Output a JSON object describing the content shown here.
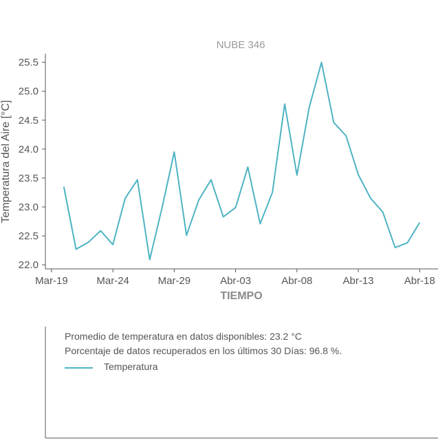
{
  "chart_data": {
    "type": "line",
    "title": "NUBE 346",
    "xlabel": "TIEMPO",
    "ylabel": "Temperatura del Aire [°C]",
    "x_tick_labels": [
      "Mar-19",
      "Mar-24",
      "Mar-29",
      "Abr-03",
      "Abr-08",
      "Abr-13",
      "Abr-18"
    ],
    "x_start_date": "Mar-19",
    "x_days_range": [
      -0.5,
      31.5
    ],
    "y_ticks": [
      22.0,
      22.5,
      23.0,
      23.5,
      24.0,
      24.5,
      25.0,
      25.5
    ],
    "ylim": [
      21.93,
      25.65
    ],
    "grid": false,
    "legend_position": "bottom-left",
    "series": [
      {
        "name": "Temperatura",
        "color": "#4db3c2",
        "x": [
          "Mar-20",
          "Mar-21",
          "Mar-22",
          "Mar-23",
          "Mar-24",
          "Mar-25",
          "Mar-26",
          "Mar-27",
          "Mar-28",
          "Mar-29",
          "Mar-30",
          "Mar-31",
          "Abr-01",
          "Abr-02",
          "Abr-03",
          "Abr-04",
          "Abr-05",
          "Abr-06",
          "Abr-07",
          "Abr-08",
          "Abr-09",
          "Abr-10",
          "Abr-11",
          "Abr-12",
          "Abr-13",
          "Abr-14",
          "Abr-15",
          "Abr-16",
          "Abr-17",
          "Abr-18"
        ],
        "x_days": [
          1,
          2,
          3,
          4,
          5,
          6,
          7,
          8,
          9,
          10,
          11,
          12,
          13,
          14,
          15,
          16,
          17,
          18,
          19,
          20,
          21,
          22,
          23,
          24,
          25,
          26,
          27,
          28,
          29,
          30
        ],
        "y": [
          23.35,
          22.27,
          22.39,
          22.59,
          22.35,
          23.15,
          23.47,
          22.09,
          22.98,
          23.95,
          22.51,
          23.12,
          23.47,
          22.83,
          22.99,
          23.69,
          22.71,
          23.25,
          24.78,
          23.55,
          24.72,
          25.5,
          24.46,
          24.23,
          23.56,
          23.15,
          22.91,
          22.3,
          22.38,
          22.73
        ]
      }
    ]
  },
  "info": {
    "average_line": "Promedio de temperatura en datos disponibles: 23.2 °C",
    "recovered_line": "Porcentaje de datos recuperados en los últimos 30 Días: 96.8 %."
  },
  "legend": {
    "label": "Temperatura"
  }
}
